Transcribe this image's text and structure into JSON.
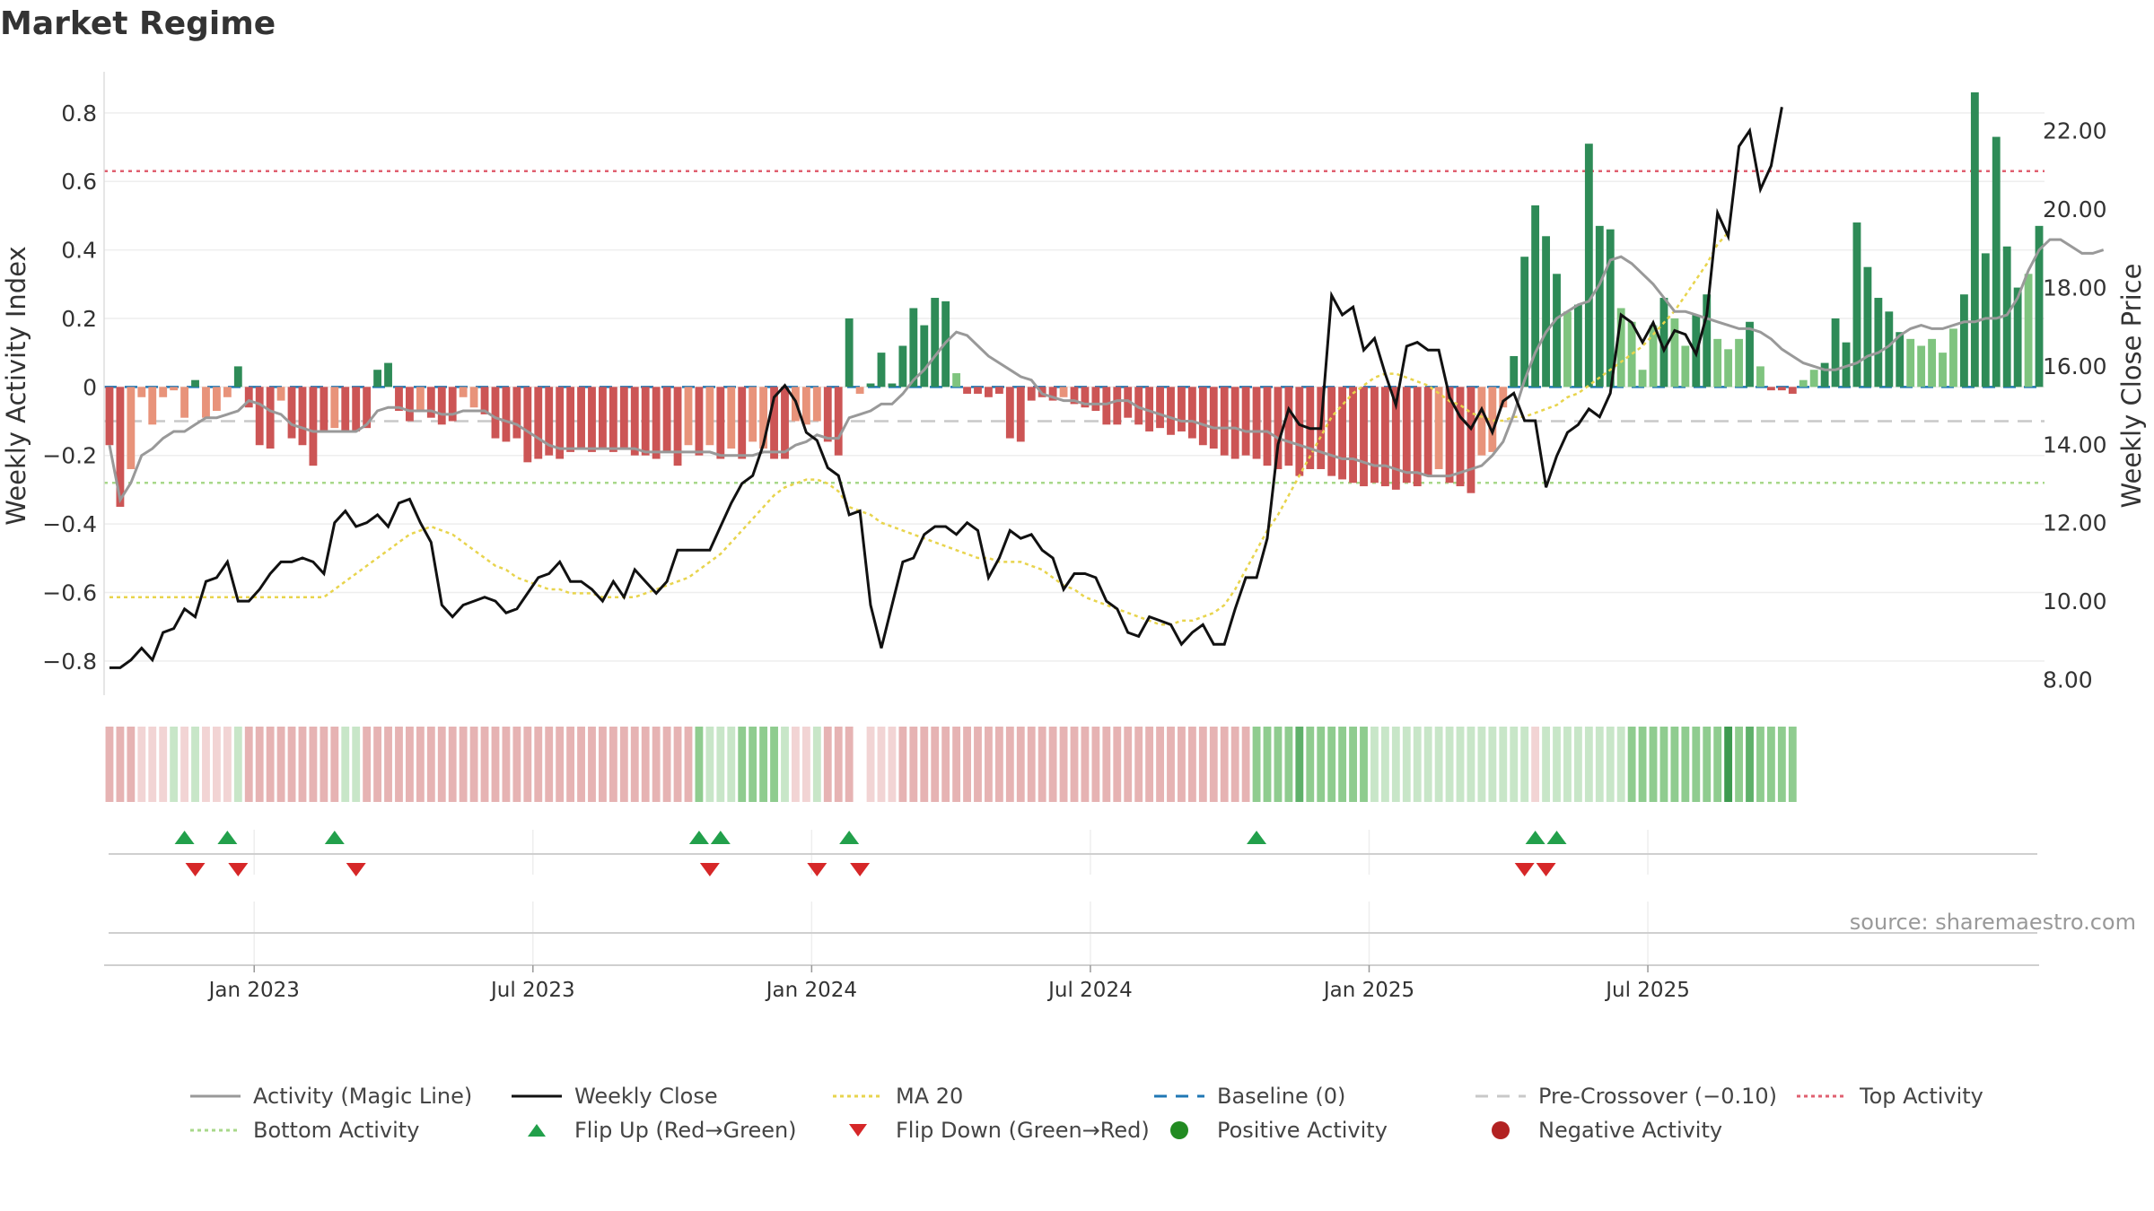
{
  "title": "Market Regime",
  "source": "source: sharemaestro.com",
  "colors": {
    "red_bar": "#cc5555",
    "light_red_bar": "#e8937a",
    "green_bar": "#2e8b57",
    "light_green_bar": "#7fc47f",
    "magic": "#999999",
    "close": "#111111",
    "ma": "#e8d44d",
    "baseline": "#1f77b4",
    "precross": "#c8c8c8",
    "top": "#e06070",
    "bottom": "#a8d88a",
    "flip_up": "#22a04b",
    "flip_down": "#d62728",
    "pos": "#228b22",
    "neg": "#b22222"
  },
  "legend": [
    {
      "label": "Activity (Magic Line)",
      "style": "solid",
      "color": "#999999"
    },
    {
      "label": "Weekly Close",
      "style": "solid",
      "color": "#111111"
    },
    {
      "label": "MA 20",
      "style": "dotted",
      "color": "#e8d44d"
    },
    {
      "label": "Baseline (0)",
      "style": "dashed",
      "color": "#1f77b4"
    },
    {
      "label": "Pre-Crossover (−0.10)",
      "style": "dashed",
      "color": "#c8c8c8"
    },
    {
      "label": "Top Activity",
      "style": "dotted",
      "color": "#e06070"
    },
    {
      "label": "Bottom Activity",
      "style": "dotted",
      "color": "#a8d88a"
    },
    {
      "label": "Flip Up (Red→Green)",
      "style": "tri-up",
      "color": "#22a04b"
    },
    {
      "label": "Flip Down (Green→Red)",
      "style": "tri-down",
      "color": "#d62728"
    },
    {
      "label": "Positive Activity",
      "style": "dot",
      "color": "#228b22"
    },
    {
      "label": "Negative Activity",
      "style": "dot",
      "color": "#b22222"
    }
  ],
  "chart_data": {
    "type": "bar",
    "title": "Market Regime",
    "ylabel_left": "Weekly Activity Index",
    "ylabel_right": "Weekly Close Price",
    "ylim_left": [
      -0.9,
      0.92
    ],
    "ylim_right": [
      7.6,
      23.5
    ],
    "yticks_left": [
      "0.8",
      "0.6",
      "0.4",
      "0.2",
      "0",
      "−0.2",
      "−0.4",
      "−0.6",
      "−0.8"
    ],
    "yticks_left_values": [
      0.8,
      0.6,
      0.4,
      0.2,
      0,
      -0.2,
      -0.4,
      -0.6,
      -0.8
    ],
    "yticks_right": [
      "22.00",
      "20.00",
      "18.00",
      "16.00",
      "14.00",
      "12.00",
      "10.00",
      "8.00"
    ],
    "yticks_right_values": [
      22,
      20,
      18,
      16,
      14,
      12,
      10,
      8
    ],
    "xticks": [
      "Jan 2023",
      "Jul 2023",
      "Jan 2024",
      "Jul 2024",
      "Jan 2025",
      "Jul 2025"
    ],
    "xticks_week_index": [
      14,
      40,
      66,
      92,
      118,
      144
    ],
    "x_start": "2022-10-03",
    "x_end": "2025-09-29",
    "reference_lines": {
      "top": 0.63,
      "bottom": -0.28,
      "baseline": 0,
      "pre_crossover": -0.1
    },
    "weekly_activity": [
      -0.17,
      -0.35,
      -0.24,
      -0.03,
      -0.11,
      -0.03,
      -0.01,
      -0.09,
      0.02,
      -0.09,
      -0.07,
      -0.03,
      0.06,
      -0.06,
      -0.17,
      -0.18,
      -0.04,
      -0.15,
      -0.17,
      -0.23,
      -0.13,
      -0.12,
      -0.13,
      -0.13,
      -0.12,
      0.05,
      0.07,
      -0.07,
      -0.1,
      -0.07,
      -0.09,
      -0.11,
      -0.1,
      -0.03,
      -0.06,
      -0.08,
      -0.15,
      -0.16,
      -0.15,
      -0.22,
      -0.21,
      -0.2,
      -0.21,
      -0.19,
      -0.18,
      -0.19,
      -0.18,
      -0.19,
      -0.18,
      -0.2,
      -0.2,
      -0.21,
      -0.19,
      -0.23,
      -0.17,
      -0.2,
      -0.17,
      -0.21,
      -0.18,
      -0.21,
      -0.16,
      -0.18,
      -0.21,
      -0.21,
      -0.1,
      -0.11,
      -0.1,
      -0.16,
      -0.2,
      0.2,
      -0.02,
      0.01,
      0.1,
      0.01,
      0.12,
      0.23,
      0.18,
      0.26,
      0.25,
      0.04,
      -0.02,
      -0.02,
      -0.03,
      -0.02,
      -0.15,
      -0.16,
      -0.04,
      -0.03,
      -0.04,
      -0.03,
      -0.05,
      -0.06,
      -0.07,
      -0.11,
      -0.11,
      -0.09,
      -0.11,
      -0.13,
      -0.12,
      -0.14,
      -0.13,
      -0.15,
      -0.17,
      -0.18,
      -0.2,
      -0.21,
      -0.2,
      -0.21,
      -0.23,
      -0.24,
      -0.23,
      -0.26,
      -0.24,
      -0.24,
      -0.26,
      -0.27,
      -0.28,
      -0.29,
      -0.28,
      -0.29,
      -0.3,
      -0.28,
      -0.29,
      -0.26,
      -0.24,
      -0.28,
      -0.29,
      -0.31,
      -0.2,
      -0.19,
      -0.06,
      0.09,
      0.38,
      0.53,
      0.44,
      0.33,
      0.22,
      0.24,
      0.71,
      0.47,
      0.46,
      0.23,
      0.19,
      0.05,
      0.18,
      0.26,
      0.2,
      0.12,
      0.21,
      0.27,
      0.14,
      0.11,
      0.14,
      0.19,
      0.06,
      -0.01,
      -0.01,
      -0.02,
      0.02,
      0.05,
      0.07,
      0.2,
      0.13,
      0.48,
      0.35,
      0.26,
      0.22,
      0.16,
      0.14,
      0.12,
      0.14,
      0.1,
      0.17,
      0.27,
      0.86,
      0.39,
      0.73,
      0.41,
      0.29,
      0.33,
      0.47
    ],
    "magic_line": [
      -0.17,
      -0.33,
      -0.28,
      -0.2,
      -0.18,
      -0.15,
      -0.13,
      -0.13,
      -0.11,
      -0.09,
      -0.09,
      -0.08,
      -0.07,
      -0.04,
      -0.05,
      -0.07,
      -0.08,
      -0.11,
      -0.12,
      -0.13,
      -0.13,
      -0.13,
      -0.13,
      -0.13,
      -0.11,
      -0.07,
      -0.06,
      -0.06,
      -0.07,
      -0.07,
      -0.07,
      -0.08,
      -0.08,
      -0.07,
      -0.07,
      -0.07,
      -0.09,
      -0.1,
      -0.11,
      -0.13,
      -0.15,
      -0.17,
      -0.18,
      -0.18,
      -0.18,
      -0.18,
      -0.18,
      -0.18,
      -0.18,
      -0.18,
      -0.19,
      -0.19,
      -0.19,
      -0.19,
      -0.19,
      -0.19,
      -0.19,
      -0.2,
      -0.2,
      -0.2,
      -0.2,
      -0.19,
      -0.19,
      -0.19,
      -0.17,
      -0.16,
      -0.14,
      -0.15,
      -0.15,
      -0.09,
      -0.08,
      -0.07,
      -0.05,
      -0.05,
      -0.02,
      0.02,
      0.05,
      0.09,
      0.13,
      0.16,
      0.15,
      0.12,
      0.09,
      0.07,
      0.05,
      0.03,
      0.02,
      -0.02,
      -0.03,
      -0.04,
      -0.04,
      -0.05,
      -0.05,
      -0.05,
      -0.04,
      -0.04,
      -0.06,
      -0.07,
      -0.08,
      -0.09,
      -0.1,
      -0.1,
      -0.11,
      -0.12,
      -0.12,
      -0.12,
      -0.13,
      -0.13,
      -0.13,
      -0.15,
      -0.16,
      -0.17,
      -0.18,
      -0.19,
      -0.2,
      -0.21,
      -0.21,
      -0.22,
      -0.23,
      -0.23,
      -0.24,
      -0.25,
      -0.25,
      -0.26,
      -0.26,
      -0.26,
      -0.25,
      -0.24,
      -0.23,
      -0.2,
      -0.16,
      -0.08,
      0.02,
      0.1,
      0.16,
      0.2,
      0.22,
      0.24,
      0.25,
      0.3,
      0.37,
      0.38,
      0.36,
      0.33,
      0.3,
      0.26,
      0.22,
      0.22,
      0.21,
      0.2,
      0.19,
      0.18,
      0.17,
      0.17,
      0.16,
      0.14,
      0.11,
      0.09,
      0.07,
      0.06,
      0.05,
      0.05,
      0.06,
      0.07,
      0.09,
      0.1,
      0.12,
      0.15,
      0.17,
      0.18,
      0.17,
      0.17,
      0.18,
      0.19,
      0.19,
      0.2,
      0.2,
      0.21,
      0.26,
      0.34,
      0.4,
      0.43,
      0.43,
      0.41,
      0.39,
      0.39,
      0.4
    ],
    "weekly_close": [
      8.3,
      8.3,
      8.5,
      8.8,
      8.5,
      9.2,
      9.3,
      9.8,
      9.6,
      10.5,
      10.6,
      11.0,
      10.0,
      10.0,
      10.3,
      10.7,
      11.0,
      11.0,
      11.1,
      11.0,
      10.7,
      12.0,
      12.3,
      11.9,
      12.0,
      12.2,
      11.9,
      12.5,
      12.6,
      12.0,
      11.5,
      9.9,
      9.6,
      9.9,
      10.0,
      10.1,
      10.0,
      9.7,
      9.8,
      10.2,
      10.6,
      10.7,
      11.0,
      10.5,
      10.5,
      10.3,
      10.0,
      10.5,
      10.1,
      10.8,
      10.5,
      10.2,
      10.5,
      11.3,
      11.3,
      11.3,
      11.3,
      11.9,
      12.5,
      13.0,
      13.2,
      14.0,
      15.2,
      15.5,
      15.1,
      14.3,
      14.1,
      13.4,
      13.2,
      12.2,
      12.3,
      9.9,
      8.8,
      9.9,
      11.0,
      11.1,
      11.7,
      11.9,
      11.9,
      11.7,
      12.0,
      11.8,
      10.6,
      11.1,
      11.8,
      11.6,
      11.7,
      11.3,
      11.1,
      10.3,
      10.7,
      10.7,
      10.6,
      10.0,
      9.8,
      9.2,
      9.1,
      9.6,
      9.5,
      9.4,
      8.9,
      9.2,
      9.4,
      8.9,
      8.9,
      9.8,
      10.6,
      10.6,
      11.6,
      14.0,
      14.9,
      14.5,
      14.4,
      14.4,
      17.8,
      17.3,
      17.5,
      16.4,
      16.7,
      15.8,
      15.0,
      16.5,
      16.6,
      16.4,
      16.4,
      15.2,
      14.7,
      14.4,
      14.9,
      14.3,
      15.1,
      15.3,
      14.6,
      14.6,
      12.9,
      13.7,
      14.3,
      14.5,
      14.9,
      14.7,
      15.3,
      17.3,
      17.1,
      16.6,
      17.1,
      16.4,
      16.9,
      16.8,
      16.3,
      17.3,
      19.9,
      19.3,
      21.6,
      22.0,
      20.5,
      21.1,
      22.6
    ],
    "ma20": [
      10.1,
      10.1,
      10.1,
      10.1,
      10.1,
      10.1,
      10.1,
      10.1,
      10.1,
      10.1,
      10.1,
      10.1,
      10.1,
      10.1,
      10.1,
      10.1,
      10.1,
      10.1,
      10.1,
      10.1,
      10.1,
      10.3,
      10.5,
      10.7,
      10.9,
      11.1,
      11.3,
      11.5,
      11.7,
      11.8,
      11.9,
      11.8,
      11.7,
      11.5,
      11.3,
      11.1,
      10.9,
      10.8,
      10.6,
      10.5,
      10.4,
      10.3,
      10.3,
      10.2,
      10.2,
      10.2,
      10.1,
      10.1,
      10.1,
      10.1,
      10.2,
      10.3,
      10.4,
      10.5,
      10.6,
      10.8,
      11.0,
      11.2,
      11.5,
      11.8,
      12.1,
      12.4,
      12.7,
      12.9,
      13.0,
      13.1,
      13.1,
      13.0,
      12.8,
      12.4,
      12.3,
      12.2,
      12.0,
      11.9,
      11.8,
      11.7,
      11.6,
      11.5,
      11.4,
      11.3,
      11.2,
      11.1,
      11.1,
      11.0,
      11.0,
      11.0,
      10.9,
      10.8,
      10.6,
      10.4,
      10.3,
      10.1,
      10.0,
      9.9,
      9.8,
      9.7,
      9.6,
      9.5,
      9.4,
      9.4,
      9.5,
      9.5,
      9.6,
      9.7,
      9.9,
      10.3,
      10.8,
      11.3,
      11.8,
      12.2,
      12.7,
      13.2,
      13.7,
      14.2,
      14.7,
      15.0,
      15.3,
      15.5,
      15.7,
      15.8,
      15.8,
      15.7,
      15.6,
      15.5,
      15.3,
      15.1,
      15.0,
      14.8,
      14.7,
      14.6,
      14.6,
      14.7,
      14.7,
      14.8,
      14.9,
      15.0,
      15.2,
      15.3,
      15.5,
      15.7,
      15.9,
      16.1,
      16.3,
      16.5,
      16.8,
      17.1,
      17.4,
      17.8,
      18.2,
      18.6,
      19.1,
      19.4
    ]
  },
  "regime_strip": [
    "r2",
    "r2",
    "r2",
    "r1",
    "r1",
    "r1",
    "g1",
    "r1",
    "g1",
    "r1",
    "r1",
    "r1",
    "g1",
    "r2",
    "r2",
    "r2",
    "r2",
    "r2",
    "r2",
    "r2",
    "r2",
    "r2",
    "g1",
    "g1",
    "r2",
    "r2",
    "r2",
    "r2",
    "r2",
    "r2",
    "r2",
    "r2",
    "r2",
    "r2",
    "r2",
    "r2",
    "r2",
    "r2",
    "r2",
    "r2",
    "r2",
    "r2",
    "r2",
    "r2",
    "r2",
    "r2",
    "r2",
    "r2",
    "r2",
    "r2",
    "r2",
    "r2",
    "r2",
    "r2",
    "r2",
    "g2",
    "g1",
    "g1",
    "g1",
    "g2",
    "g2",
    "g2",
    "g2",
    "g1",
    "r1",
    "r1",
    "g1",
    "r2",
    "r2",
    "r2",
    "",
    "r1",
    "r1",
    "r1",
    "r2",
    "r2",
    "r2",
    "r2",
    "r2",
    "r2",
    "r2",
    "r2",
    "r2",
    "r2",
    "r2",
    "r2",
    "r2",
    "r2",
    "r2",
    "r2",
    "r2",
    "r2",
    "r2",
    "r2",
    "r2",
    "r2",
    "r2",
    "r2",
    "r2",
    "r2",
    "r2",
    "r2",
    "r2",
    "r2",
    "r2",
    "r2",
    "r2",
    "g2",
    "g2",
    "g2",
    "g2",
    "g3",
    "g2",
    "g2",
    "g2",
    "g2",
    "g2",
    "g2",
    "g1",
    "g1",
    "g1",
    "g1",
    "g1",
    "g1",
    "g1",
    "g1",
    "g1",
    "g1",
    "g1",
    "g1",
    "g1",
    "g1",
    "g1",
    "r1",
    "g1",
    "g1",
    "g1",
    "g1",
    "g1",
    "g1",
    "g1",
    "g1",
    "g2",
    "g2",
    "g2",
    "g2",
    "g2",
    "g2",
    "g2",
    "g2",
    "g2",
    "g4",
    "g2",
    "g3",
    "g2",
    "g2",
    "g2",
    "g2"
  ],
  "flip_up_weeks": [
    7,
    11,
    21,
    55,
    57,
    69,
    107,
    133,
    135
  ],
  "flip_down_weeks": [
    8,
    12,
    23,
    56,
    66,
    70,
    132,
    134
  ]
}
